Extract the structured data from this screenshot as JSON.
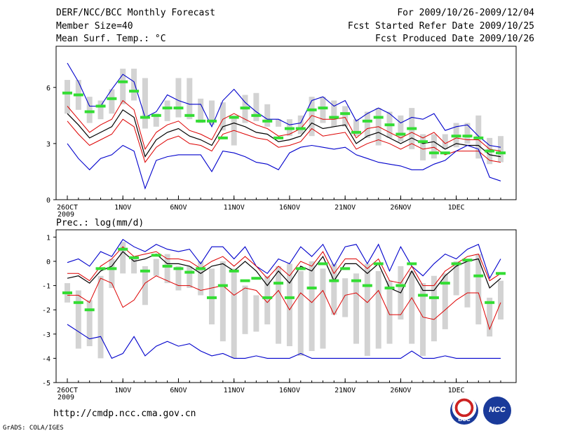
{
  "header": {
    "title": "DERF/NCC/BCC Monthly Forecast",
    "member_size": "Member Size=40",
    "variable": "Mean Surf. Temp.: °C",
    "forecast_period": "For 2009/10/26-2009/12/04",
    "fcst_started": "Fcst Started Refer Date 2009/10/25",
    "fcst_produced": "Fcst Produced Date 2009/10/26"
  },
  "footer": {
    "url": "http://cmdp.ncc.cma.gov.cn",
    "grads": "GrADS: COLA/IGES",
    "logo_bcc": "BCC",
    "logo_ncc": "NCC"
  },
  "colors": {
    "box": "#d3d3d3",
    "median": "#33dd33",
    "mean": "#000000",
    "sd": "#dd0000",
    "range": "#0000cc"
  },
  "chart_data": [
    {
      "type": "line",
      "title": "",
      "ylabel": "",
      "ylim": [
        0,
        8.2
      ],
      "yticks": [
        0,
        3,
        6
      ],
      "ytick_labels": [
        "0",
        "3",
        "6"
      ],
      "x": [
        1,
        2,
        3,
        4,
        5,
        6,
        7,
        8,
        9,
        10,
        11,
        12,
        13,
        14,
        15,
        16,
        17,
        18,
        19,
        20,
        21,
        22,
        23,
        24,
        25,
        26,
        27,
        28,
        29,
        30,
        31,
        32,
        33,
        34,
        35,
        36,
        37,
        38,
        39,
        40
      ],
      "xticks": [
        1,
        6,
        11,
        16,
        21,
        26,
        31,
        36
      ],
      "xtick_labels": [
        "26OCT",
        "1NOV",
        "6NOV",
        "11NOV",
        "16NOV",
        "21NOV",
        "26NOV",
        "1DEC"
      ],
      "xtick_sublabel": "2009",
      "box_low": [
        4.6,
        4.8,
        4.1,
        4.3,
        4.6,
        5.1,
        5.3,
        3.8,
        3.9,
        4.2,
        4.4,
        4.3,
        4.1,
        4.0,
        3.7,
        2.9,
        4.1,
        4.2,
        3.9,
        3.9,
        3.4,
        3.5,
        3.4,
        4.1,
        3.9,
        3.9,
        3.4,
        3.3,
        2.9,
        3.3,
        3.1,
        2.7,
        2.1,
        2.2,
        2.7,
        2.8,
        3.0,
        2.2,
        1.9,
        2.0
      ],
      "box_high": [
        6.4,
        6.4,
        5.5,
        5.3,
        5.9,
        7.0,
        7.0,
        6.5,
        4.6,
        5.3,
        6.5,
        6.5,
        5.4,
        5.3,
        5.2,
        4.5,
        5.6,
        5.7,
        5.1,
        4.3,
        4.3,
        4.5,
        5.5,
        5.5,
        5.3,
        5.0,
        4.3,
        4.7,
        4.9,
        4.7,
        4.5,
        4.9,
        3.5,
        3.5,
        3.5,
        4.1,
        4.1,
        4.5,
        3.3,
        3.4
      ],
      "series": [
        {
          "name": "median",
          "values": [
            5.7,
            5.6,
            4.7,
            5.0,
            5.4,
            6.3,
            5.8,
            4.4,
            4.5,
            4.9,
            4.9,
            4.5,
            4.2,
            4.2,
            3.3,
            4.4,
            4.9,
            4.5,
            4.2,
            3.3,
            3.8,
            3.8,
            4.8,
            4.9,
            4.4,
            4.6,
            3.6,
            4.2,
            4.4,
            4.0,
            3.5,
            3.8,
            3.1,
            2.5,
            2.5,
            3.4,
            3.4,
            3.3,
            2.6,
            2.5
          ]
        },
        {
          "name": "max",
          "values": [
            7.3,
            6.3,
            5.0,
            5.0,
            5.9,
            6.7,
            6.3,
            4.4,
            4.7,
            5.6,
            5.3,
            5.1,
            5.1,
            3.9,
            5.3,
            5.9,
            5.2,
            4.7,
            4.3,
            4.3,
            4.0,
            4.1,
            5.3,
            5.5,
            5.0,
            5.3,
            4.2,
            4.6,
            4.9,
            4.6,
            4.1,
            4.4,
            4.3,
            4.6,
            3.7,
            3.9,
            4.0,
            3.4,
            2.9,
            2.8
          ]
        },
        {
          "name": "plus_sd",
          "values": [
            5.0,
            4.3,
            3.6,
            4.0,
            4.3,
            5.3,
            4.8,
            2.7,
            3.6,
            4.0,
            4.2,
            3.7,
            3.5,
            3.2,
            4.3,
            4.6,
            4.3,
            4.0,
            3.8,
            3.4,
            3.5,
            3.8,
            4.5,
            4.3,
            4.3,
            4.4,
            3.3,
            3.8,
            3.9,
            3.6,
            3.3,
            3.6,
            3.3,
            3.6,
            3.0,
            3.3,
            3.2,
            3.2,
            2.7,
            2.6
          ]
        },
        {
          "name": "mean",
          "values": [
            4.6,
            4.0,
            3.3,
            3.6,
            3.9,
            4.8,
            4.4,
            2.3,
            3.2,
            3.6,
            3.8,
            3.4,
            3.2,
            2.9,
            3.9,
            4.1,
            3.9,
            3.6,
            3.5,
            3.1,
            3.2,
            3.4,
            4.1,
            3.8,
            3.9,
            4.0,
            3.0,
            3.4,
            3.6,
            3.3,
            3.0,
            3.3,
            3.0,
            3.1,
            2.7,
            3.0,
            2.9,
            2.9,
            2.4,
            2.3
          ]
        },
        {
          "name": "minus_sd",
          "values": [
            4.2,
            3.5,
            2.9,
            3.2,
            3.5,
            4.3,
            3.9,
            2.0,
            2.8,
            3.2,
            3.4,
            3.0,
            2.9,
            2.6,
            3.5,
            3.7,
            3.5,
            3.3,
            3.2,
            2.8,
            2.9,
            3.1,
            3.8,
            3.4,
            3.5,
            3.6,
            2.7,
            3.0,
            3.2,
            3.0,
            2.7,
            3.0,
            2.7,
            2.8,
            2.4,
            2.6,
            2.6,
            2.6,
            2.1,
            2.0
          ]
        },
        {
          "name": "min",
          "values": [
            3.0,
            2.2,
            1.6,
            2.2,
            2.4,
            2.9,
            2.6,
            0.6,
            2.1,
            2.3,
            2.4,
            2.4,
            2.4,
            1.5,
            2.6,
            2.5,
            2.3,
            2.0,
            1.9,
            1.6,
            2.5,
            2.8,
            2.9,
            2.8,
            2.7,
            2.8,
            2.4,
            2.2,
            2.0,
            1.9,
            1.8,
            1.6,
            1.6,
            1.9,
            2.1,
            2.6,
            2.9,
            2.7,
            1.2,
            1.0
          ]
        }
      ]
    },
    {
      "type": "line",
      "title": "Prec.: log(mm/d)",
      "ylabel": "",
      "ylim": [
        -5,
        1.3
      ],
      "yticks": [
        -5,
        -4,
        -3,
        -2,
        -1,
        0,
        1
      ],
      "ytick_labels": [
        "-5",
        "-4",
        "-3",
        "-2",
        "-1",
        "0",
        "1"
      ],
      "x": [
        1,
        2,
        3,
        4,
        5,
        6,
        7,
        8,
        9,
        10,
        11,
        12,
        13,
        14,
        15,
        16,
        17,
        18,
        19,
        20,
        21,
        22,
        23,
        24,
        25,
        26,
        27,
        28,
        29,
        30,
        31,
        32,
        33,
        34,
        35,
        36,
        37,
        38,
        39,
        40
      ],
      "xticks": [
        1,
        6,
        11,
        16,
        21,
        26,
        31,
        36
      ],
      "xtick_labels": [
        "26OCT",
        "1NOV",
        "6NOV",
        "11NOV",
        "16NOV",
        "21NOV",
        "26NOV",
        "1DEC"
      ],
      "xtick_sublabel": "2009",
      "box_low": [
        -1.7,
        -3.6,
        -3.5,
        -4.0,
        -1.1,
        -0.5,
        -0.5,
        -1.8,
        -0.6,
        -0.9,
        -1.2,
        -1.1,
        -1.4,
        -2.6,
        -3.3,
        -4.0,
        -3.0,
        -2.9,
        -2.6,
        -3.4,
        -3.5,
        -3.9,
        -3.7,
        -3.6,
        -2.2,
        -2.3,
        -3.4,
        -3.9,
        -3.6,
        -3.4,
        -2.4,
        -3.4,
        -3.9,
        -3.3,
        -2.8,
        -1.4,
        -1.9,
        -2.6,
        -3.1,
        -2.4
      ],
      "box_high": [
        -0.9,
        -1.2,
        -1.6,
        -0.6,
        0.1,
        0.8,
        0.2,
        -0.2,
        0.1,
        0.3,
        -0.2,
        -0.2,
        0.0,
        -0.3,
        0.0,
        -0.3,
        -1.0,
        -1.4,
        -0.6,
        -0.2,
        -0.1,
        -0.4,
        0.0,
        -0.3,
        -0.1,
        -0.7,
        -0.5,
        -0.1,
        -0.4,
        -0.8,
        -0.2,
        -0.4,
        -0.9,
        -0.6,
        -0.5,
        0.0,
        0.1,
        0.3,
        -1.5,
        -0.8
      ],
      "series": [
        {
          "name": "median",
          "values": [
            -1.3,
            -1.7,
            -2.0,
            -0.3,
            -0.3,
            0.5,
            0.15,
            -0.4,
            0.25,
            -0.2,
            -0.3,
            -0.45,
            -0.3,
            -1.5,
            -1.0,
            -0.4,
            -0.8,
            -0.7,
            -1.5,
            -0.9,
            -1.5,
            -0.3,
            -1.1,
            -0.1,
            -0.8,
            -0.3,
            -0.8,
            -1.0,
            -0.1,
            -1.1,
            -1.0,
            -0.1,
            -1.4,
            -1.5,
            -0.9,
            -0.1,
            0.05,
            -0.6,
            -1.7,
            -0.5
          ]
        },
        {
          "name": "max",
          "values": [
            -0.05,
            0.1,
            -0.2,
            0.4,
            0.2,
            0.9,
            0.6,
            0.4,
            0.7,
            0.5,
            0.4,
            0.5,
            -0.1,
            0.6,
            0.6,
            0.1,
            0.6,
            -0.2,
            -0.5,
            0.1,
            -0.1,
            0.6,
            0.2,
            0.7,
            -0.2,
            0.6,
            0.7,
            -0.1,
            0.7,
            -0.4,
            0.6,
            -0.2,
            -0.6,
            -0.1,
            0.3,
            0.1,
            0.5,
            0.7,
            -0.7,
            0.1
          ]
        },
        {
          "name": "plus_sd",
          "values": [
            -0.5,
            -0.5,
            -0.8,
            -0.2,
            0.1,
            0.6,
            0.2,
            0.3,
            0.4,
            0.1,
            0.1,
            0.0,
            -0.3,
            0.0,
            0.2,
            -0.2,
            0.2,
            -0.2,
            -0.7,
            -0.2,
            -0.6,
            0.0,
            -0.2,
            0.4,
            -0.5,
            0.1,
            0.1,
            -0.3,
            0.1,
            -0.8,
            -0.9,
            -0.2,
            -1.0,
            -1.0,
            -0.4,
            -0.1,
            0.2,
            0.3,
            -0.8,
            -0.5
          ]
        },
        {
          "name": "mean",
          "values": [
            -0.7,
            -0.6,
            -0.9,
            -0.4,
            -0.2,
            0.4,
            0.0,
            0.1,
            0.3,
            -0.1,
            -0.1,
            -0.2,
            -0.5,
            -0.2,
            -0.1,
            -0.4,
            0.0,
            -0.4,
            -1.0,
            -0.4,
            -0.9,
            -0.2,
            -0.4,
            0.2,
            -0.8,
            -0.1,
            -0.1,
            -0.5,
            -0.1,
            -1.1,
            -1.3,
            -0.4,
            -1.2,
            -1.2,
            -0.6,
            -0.2,
            0.0,
            0.1,
            -1.1,
            -0.7
          ]
        },
        {
          "name": "minus_sd",
          "values": [
            -1.4,
            -1.4,
            -1.7,
            -0.7,
            -0.9,
            -1.9,
            -1.6,
            -0.9,
            -0.6,
            -0.8,
            -1.0,
            -1.0,
            -1.2,
            -1.1,
            -1.0,
            -1.4,
            -1.1,
            -1.2,
            -1.7,
            -1.2,
            -2.0,
            -1.3,
            -1.7,
            -1.2,
            -2.2,
            -1.4,
            -1.3,
            -1.7,
            -1.2,
            -2.2,
            -2.2,
            -1.5,
            -2.3,
            -2.4,
            -2.0,
            -1.6,
            -1.3,
            -1.3,
            -2.8,
            -1.7
          ]
        },
        {
          "name": "min",
          "values": [
            -2.6,
            -2.9,
            -3.2,
            -3.1,
            -4.0,
            -3.8,
            -3.1,
            -3.9,
            -3.5,
            -3.3,
            -3.5,
            -3.4,
            -3.7,
            -3.9,
            -3.8,
            -4.0,
            -4.0,
            -3.9,
            -4.0,
            -4.0,
            -4.0,
            -3.8,
            -4.0,
            -4.0,
            -4.0,
            -4.0,
            -4.0,
            -4.0,
            -4.0,
            -4.0,
            -4.0,
            -3.7,
            -4.0,
            -4.0,
            -3.9,
            -4.0,
            -4.0,
            -4.0,
            -4.0,
            -4.0
          ]
        }
      ]
    }
  ]
}
